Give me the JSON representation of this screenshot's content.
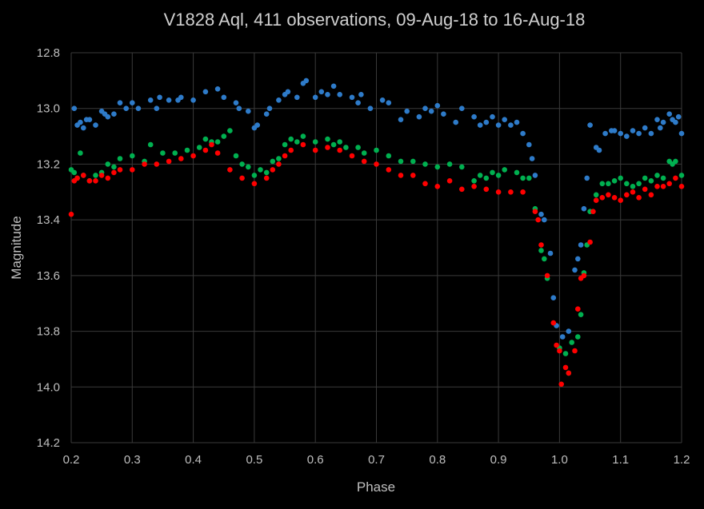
{
  "chart_data": {
    "type": "scatter",
    "title": "V1828 Aql, 411 observations, 09-Aug-18 to 16-Aug-18",
    "xlabel": "Phase",
    "ylabel": "Magnitude",
    "xlim": [
      0.2,
      1.2
    ],
    "ylim": [
      12.8,
      14.2
    ],
    "y_inverted": true,
    "grid": true,
    "xticks": [
      "0.2",
      "0.3",
      "0.4",
      "0.5",
      "0.6",
      "0.7",
      "0.8",
      "0.9",
      "1.0",
      "1.1",
      "1.2"
    ],
    "yticks": [
      "12.8",
      "13.0",
      "13.2",
      "13.4",
      "13.6",
      "13.8",
      "14.0",
      "14.2"
    ],
    "series": [
      {
        "color": "#2E7BC9",
        "points": [
          [
            0.205,
            13.0
          ],
          [
            0.21,
            13.06
          ],
          [
            0.215,
            13.05
          ],
          [
            0.22,
            13.07
          ],
          [
            0.225,
            13.04
          ],
          [
            0.23,
            13.04
          ],
          [
            0.24,
            13.06
          ],
          [
            0.25,
            13.01
          ],
          [
            0.255,
            13.02
          ],
          [
            0.26,
            13.03
          ],
          [
            0.27,
            13.02
          ],
          [
            0.28,
            12.98
          ],
          [
            0.29,
            13.0
          ],
          [
            0.3,
            12.98
          ],
          [
            0.31,
            13.0
          ],
          [
            0.33,
            12.97
          ],
          [
            0.34,
            13.0
          ],
          [
            0.345,
            12.96
          ],
          [
            0.36,
            12.97
          ],
          [
            0.375,
            12.97
          ],
          [
            0.38,
            12.96
          ],
          [
            0.4,
            12.97
          ],
          [
            0.42,
            12.94
          ],
          [
            0.44,
            12.93
          ],
          [
            0.45,
            12.96
          ],
          [
            0.47,
            12.98
          ],
          [
            0.475,
            13.0
          ],
          [
            0.49,
            13.01
          ],
          [
            0.5,
            13.07
          ],
          [
            0.505,
            13.06
          ],
          [
            0.52,
            13.02
          ],
          [
            0.525,
            13.0
          ],
          [
            0.54,
            12.97
          ],
          [
            0.55,
            12.95
          ],
          [
            0.555,
            12.94
          ],
          [
            0.57,
            12.96
          ],
          [
            0.58,
            12.91
          ],
          [
            0.585,
            12.9
          ],
          [
            0.6,
            12.96
          ],
          [
            0.61,
            12.94
          ],
          [
            0.62,
            12.95
          ],
          [
            0.63,
            12.92
          ],
          [
            0.64,
            12.95
          ],
          [
            0.66,
            12.96
          ],
          [
            0.67,
            12.98
          ],
          [
            0.675,
            12.95
          ],
          [
            0.69,
            13.0
          ],
          [
            0.71,
            12.97
          ],
          [
            0.72,
            12.98
          ],
          [
            0.74,
            13.04
          ],
          [
            0.75,
            13.01
          ],
          [
            0.77,
            13.03
          ],
          [
            0.78,
            13.0
          ],
          [
            0.79,
            13.01
          ],
          [
            0.8,
            12.99
          ],
          [
            0.81,
            13.02
          ],
          [
            0.83,
            13.05
          ],
          [
            0.84,
            13.0
          ],
          [
            0.86,
            13.03
          ],
          [
            0.87,
            13.06
          ],
          [
            0.88,
            13.05
          ],
          [
            0.89,
            13.03
          ],
          [
            0.9,
            13.06
          ],
          [
            0.91,
            13.04
          ],
          [
            0.92,
            13.06
          ],
          [
            0.93,
            13.05
          ],
          [
            0.94,
            13.09
          ],
          [
            0.95,
            13.13
          ],
          [
            0.955,
            13.18
          ],
          [
            0.96,
            13.24
          ],
          [
            0.97,
            13.38
          ],
          [
            0.975,
            13.4
          ],
          [
            0.985,
            13.52
          ],
          [
            0.99,
            13.68
          ],
          [
            0.995,
            13.78
          ],
          [
            1.005,
            13.82
          ],
          [
            1.015,
            13.8
          ],
          [
            1.025,
            13.58
          ],
          [
            1.03,
            13.54
          ],
          [
            1.035,
            13.49
          ],
          [
            1.04,
            13.36
          ],
          [
            1.045,
            13.25
          ],
          [
            1.05,
            13.06
          ],
          [
            1.06,
            13.14
          ],
          [
            1.065,
            13.15
          ],
          [
            1.075,
            13.09
          ],
          [
            1.085,
            13.08
          ],
          [
            1.09,
            13.08
          ],
          [
            1.1,
            13.09
          ],
          [
            1.11,
            13.1
          ],
          [
            1.12,
            13.08
          ],
          [
            1.13,
            13.09
          ],
          [
            1.14,
            13.07
          ],
          [
            1.15,
            13.09
          ],
          [
            1.16,
            13.04
          ],
          [
            1.165,
            13.07
          ],
          [
            1.17,
            13.05
          ],
          [
            1.18,
            13.02
          ],
          [
            1.185,
            13.04
          ],
          [
            1.19,
            13.05
          ],
          [
            1.195,
            13.03
          ],
          [
            1.2,
            13.09
          ]
        ]
      },
      {
        "color": "#00B050",
        "points": [
          [
            0.2,
            13.22
          ],
          [
            0.205,
            13.23
          ],
          [
            0.21,
            13.25
          ],
          [
            0.215,
            13.16
          ],
          [
            0.22,
            13.24
          ],
          [
            0.23,
            13.26
          ],
          [
            0.24,
            13.24
          ],
          [
            0.25,
            13.23
          ],
          [
            0.26,
            13.2
          ],
          [
            0.27,
            13.21
          ],
          [
            0.28,
            13.18
          ],
          [
            0.3,
            13.17
          ],
          [
            0.32,
            13.19
          ],
          [
            0.33,
            13.13
          ],
          [
            0.35,
            13.16
          ],
          [
            0.37,
            13.16
          ],
          [
            0.39,
            13.15
          ],
          [
            0.41,
            13.14
          ],
          [
            0.42,
            13.11
          ],
          [
            0.43,
            13.12
          ],
          [
            0.44,
            13.12
          ],
          [
            0.45,
            13.1
          ],
          [
            0.46,
            13.08
          ],
          [
            0.47,
            13.17
          ],
          [
            0.48,
            13.2
          ],
          [
            0.49,
            13.21
          ],
          [
            0.5,
            13.24
          ],
          [
            0.51,
            13.22
          ],
          [
            0.52,
            13.23
          ],
          [
            0.53,
            13.19
          ],
          [
            0.54,
            13.18
          ],
          [
            0.55,
            13.13
          ],
          [
            0.56,
            13.11
          ],
          [
            0.57,
            13.12
          ],
          [
            0.58,
            13.1
          ],
          [
            0.6,
            13.12
          ],
          [
            0.62,
            13.11
          ],
          [
            0.63,
            13.13
          ],
          [
            0.64,
            13.12
          ],
          [
            0.65,
            13.14
          ],
          [
            0.67,
            13.14
          ],
          [
            0.68,
            13.16
          ],
          [
            0.7,
            13.15
          ],
          [
            0.72,
            13.17
          ],
          [
            0.74,
            13.19
          ],
          [
            0.76,
            13.19
          ],
          [
            0.78,
            13.2
          ],
          [
            0.8,
            13.21
          ],
          [
            0.82,
            13.2
          ],
          [
            0.84,
            13.21
          ],
          [
            0.86,
            13.26
          ],
          [
            0.87,
            13.24
          ],
          [
            0.88,
            13.25
          ],
          [
            0.89,
            13.23
          ],
          [
            0.9,
            13.24
          ],
          [
            0.91,
            13.22
          ],
          [
            0.93,
            13.23
          ],
          [
            0.94,
            13.25
          ],
          [
            0.95,
            13.25
          ],
          [
            0.96,
            13.36
          ],
          [
            0.97,
            13.51
          ],
          [
            0.975,
            13.54
          ],
          [
            0.98,
            13.61
          ],
          [
            1.0,
            13.86
          ],
          [
            1.01,
            13.88
          ],
          [
            1.015,
            13.95
          ],
          [
            1.02,
            13.84
          ],
          [
            1.03,
            13.82
          ],
          [
            1.035,
            13.74
          ],
          [
            1.04,
            13.59
          ],
          [
            1.045,
            13.49
          ],
          [
            1.05,
            13.37
          ],
          [
            1.06,
            13.31
          ],
          [
            1.07,
            13.27
          ],
          [
            1.08,
            13.27
          ],
          [
            1.09,
            13.26
          ],
          [
            1.1,
            13.25
          ],
          [
            1.11,
            13.27
          ],
          [
            1.12,
            13.28
          ],
          [
            1.13,
            13.27
          ],
          [
            1.14,
            13.25
          ],
          [
            1.15,
            13.26
          ],
          [
            1.16,
            13.24
          ],
          [
            1.17,
            13.25
          ],
          [
            1.18,
            13.19
          ],
          [
            1.185,
            13.2
          ],
          [
            1.19,
            13.19
          ],
          [
            1.2,
            13.24
          ]
        ]
      },
      {
        "color": "#FF0000",
        "points": [
          [
            0.2,
            13.38
          ],
          [
            0.205,
            13.26
          ],
          [
            0.21,
            13.25
          ],
          [
            0.22,
            13.24
          ],
          [
            0.23,
            13.26
          ],
          [
            0.24,
            13.26
          ],
          [
            0.25,
            13.24
          ],
          [
            0.26,
            13.25
          ],
          [
            0.27,
            13.23
          ],
          [
            0.28,
            13.22
          ],
          [
            0.3,
            13.22
          ],
          [
            0.32,
            13.2
          ],
          [
            0.34,
            13.2
          ],
          [
            0.36,
            13.19
          ],
          [
            0.38,
            13.18
          ],
          [
            0.4,
            13.17
          ],
          [
            0.42,
            13.15
          ],
          [
            0.43,
            13.13
          ],
          [
            0.44,
            13.16
          ],
          [
            0.46,
            13.22
          ],
          [
            0.48,
            13.25
          ],
          [
            0.5,
            13.27
          ],
          [
            0.52,
            13.25
          ],
          [
            0.53,
            13.22
          ],
          [
            0.54,
            13.2
          ],
          [
            0.55,
            13.17
          ],
          [
            0.56,
            13.15
          ],
          [
            0.58,
            13.13
          ],
          [
            0.6,
            13.15
          ],
          [
            0.62,
            13.14
          ],
          [
            0.64,
            13.15
          ],
          [
            0.66,
            13.17
          ],
          [
            0.68,
            13.19
          ],
          [
            0.7,
            13.2
          ],
          [
            0.72,
            13.22
          ],
          [
            0.74,
            13.24
          ],
          [
            0.76,
            13.24
          ],
          [
            0.78,
            13.27
          ],
          [
            0.8,
            13.28
          ],
          [
            0.82,
            13.26
          ],
          [
            0.84,
            13.29
          ],
          [
            0.86,
            13.28
          ],
          [
            0.88,
            13.29
          ],
          [
            0.9,
            13.3
          ],
          [
            0.92,
            13.3
          ],
          [
            0.94,
            13.3
          ],
          [
            0.96,
            13.37
          ],
          [
            0.965,
            13.4
          ],
          [
            0.97,
            13.49
          ],
          [
            0.98,
            13.6
          ],
          [
            0.99,
            13.77
          ],
          [
            0.995,
            13.85
          ],
          [
            1.0,
            13.87
          ],
          [
            1.003,
            13.99
          ],
          [
            1.01,
            13.93
          ],
          [
            1.015,
            13.95
          ],
          [
            1.025,
            13.87
          ],
          [
            1.03,
            13.72
          ],
          [
            1.035,
            13.61
          ],
          [
            1.04,
            13.6
          ],
          [
            1.05,
            13.48
          ],
          [
            1.055,
            13.37
          ],
          [
            1.06,
            13.33
          ],
          [
            1.07,
            13.32
          ],
          [
            1.08,
            13.31
          ],
          [
            1.09,
            13.32
          ],
          [
            1.1,
            13.33
          ],
          [
            1.11,
            13.31
          ],
          [
            1.12,
            13.3
          ],
          [
            1.13,
            13.32
          ],
          [
            1.14,
            13.29
          ],
          [
            1.15,
            13.31
          ],
          [
            1.16,
            13.28
          ],
          [
            1.17,
            13.28
          ],
          [
            1.18,
            13.27
          ],
          [
            1.19,
            13.25
          ],
          [
            1.2,
            13.28
          ]
        ]
      }
    ]
  }
}
